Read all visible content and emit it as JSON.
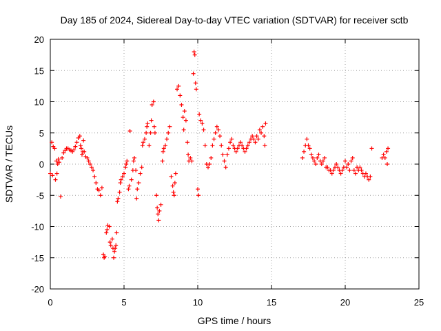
{
  "chart_data": {
    "type": "scatter",
    "title": "Day 185 of 2024, Sidereal Day-to-day VTEC variation (SDTVAR) for receiver sctb",
    "xlabel": "GPS time / hours",
    "ylabel": "SDTVAR / TECUs",
    "xlim": [
      0,
      25
    ],
    "ylim": [
      -20,
      20
    ],
    "x_ticks": [
      0,
      5,
      10,
      15,
      20,
      25
    ],
    "y_ticks": [
      -20,
      -15,
      -10,
      -5,
      0,
      5,
      10,
      15,
      20
    ],
    "grid": true,
    "marker": "+",
    "series": [
      {
        "name": "SDTVAR",
        "color": "#ff0000",
        "points": [
          [
            0.0,
            -1.5
          ],
          [
            0.1,
            3.5
          ],
          [
            0.15,
            -1.8
          ],
          [
            0.2,
            2.8
          ],
          [
            0.3,
            2.5
          ],
          [
            0.35,
            -2.5
          ],
          [
            0.4,
            0.5
          ],
          [
            0.45,
            -1.5
          ],
          [
            0.5,
            0.0
          ],
          [
            0.55,
            0.8
          ],
          [
            0.6,
            0.3
          ],
          [
            0.7,
            -5.2
          ],
          [
            0.8,
            1.0
          ],
          [
            0.9,
            1.8
          ],
          [
            1.0,
            2.2
          ],
          [
            1.1,
            2.5
          ],
          [
            1.2,
            2.5
          ],
          [
            1.3,
            2.3
          ],
          [
            1.4,
            2.2
          ],
          [
            1.5,
            2.0
          ],
          [
            1.6,
            2.3
          ],
          [
            1.7,
            2.8
          ],
          [
            1.8,
            3.5
          ],
          [
            1.9,
            4.2
          ],
          [
            2.0,
            4.5
          ],
          [
            2.05,
            3.0
          ],
          [
            2.1,
            2.5
          ],
          [
            2.15,
            1.5
          ],
          [
            2.2,
            2.0
          ],
          [
            2.25,
            3.8
          ],
          [
            2.3,
            2.0
          ],
          [
            2.4,
            1.2
          ],
          [
            2.5,
            1.0
          ],
          [
            2.6,
            0.5
          ],
          [
            2.7,
            0.0
          ],
          [
            2.8,
            -0.5
          ],
          [
            2.9,
            -1.0
          ],
          [
            3.0,
            -2.0
          ],
          [
            3.1,
            -3.0
          ],
          [
            3.2,
            -4.0
          ],
          [
            3.3,
            -4.2
          ],
          [
            3.4,
            -5.0
          ],
          [
            3.5,
            -3.8
          ],
          [
            3.6,
            -14.5
          ],
          [
            3.65,
            -15.0
          ],
          [
            3.7,
            -14.8
          ],
          [
            3.8,
            -11.0
          ],
          [
            3.85,
            -10.5
          ],
          [
            3.9,
            -9.8
          ],
          [
            4.0,
            -10.0
          ],
          [
            4.05,
            -12.5
          ],
          [
            4.1,
            -13.0
          ],
          [
            4.2,
            -12.0
          ],
          [
            4.25,
            -13.5
          ],
          [
            4.3,
            -15.0
          ],
          [
            4.35,
            -14.0
          ],
          [
            4.4,
            -13.5
          ],
          [
            4.45,
            -13.0
          ],
          [
            4.5,
            -11.0
          ],
          [
            4.55,
            -6.0
          ],
          [
            4.6,
            -5.5
          ],
          [
            4.7,
            -4.5
          ],
          [
            4.75,
            -3.0
          ],
          [
            4.8,
            -2.5
          ],
          [
            4.9,
            -2.0
          ],
          [
            5.0,
            -1.5
          ],
          [
            5.1,
            -0.5
          ],
          [
            5.15,
            0.0
          ],
          [
            5.2,
            0.5
          ],
          [
            5.3,
            -4.0
          ],
          [
            5.35,
            -3.5
          ],
          [
            5.4,
            5.3
          ],
          [
            5.5,
            -2.5
          ],
          [
            5.6,
            -1.0
          ],
          [
            5.65,
            0.5
          ],
          [
            5.7,
            1.0
          ],
          [
            5.8,
            -1.0
          ],
          [
            5.85,
            -5.5
          ],
          [
            5.9,
            -4.0
          ],
          [
            6.0,
            -3.0
          ],
          [
            6.1,
            -1.5
          ],
          [
            6.2,
            -0.5
          ],
          [
            6.25,
            3.0
          ],
          [
            6.3,
            3.5
          ],
          [
            6.4,
            4.0
          ],
          [
            6.5,
            5.0
          ],
          [
            6.55,
            6.0
          ],
          [
            6.6,
            6.5
          ],
          [
            6.7,
            3.0
          ],
          [
            6.8,
            5.0
          ],
          [
            6.85,
            7.0
          ],
          [
            6.9,
            9.5
          ],
          [
            7.0,
            10.0
          ],
          [
            7.05,
            6.0
          ],
          [
            7.1,
            5.0
          ],
          [
            7.2,
            -5.0
          ],
          [
            7.25,
            -7.0
          ],
          [
            7.3,
            -8.0
          ],
          [
            7.35,
            -9.0
          ],
          [
            7.4,
            -7.5
          ],
          [
            7.5,
            -6.5
          ],
          [
            7.6,
            0.5
          ],
          [
            7.65,
            2.0
          ],
          [
            7.7,
            2.5
          ],
          [
            7.8,
            3.0
          ],
          [
            7.9,
            4.0
          ],
          [
            8.0,
            5.0
          ],
          [
            8.1,
            6.0
          ],
          [
            8.2,
            -2.0
          ],
          [
            8.3,
            -3.5
          ],
          [
            8.35,
            -4.5
          ],
          [
            8.4,
            -5.0
          ],
          [
            8.45,
            -3.0
          ],
          [
            8.5,
            -1.5
          ],
          [
            8.6,
            12.0
          ],
          [
            8.7,
            12.5
          ],
          [
            8.8,
            11.0
          ],
          [
            8.9,
            9.5
          ],
          [
            9.0,
            7.5
          ],
          [
            9.05,
            5.5
          ],
          [
            9.1,
            8.5
          ],
          [
            9.2,
            7.0
          ],
          [
            9.3,
            3.5
          ],
          [
            9.35,
            1.5
          ],
          [
            9.4,
            0.5
          ],
          [
            9.5,
            1.0
          ],
          [
            9.6,
            0.5
          ],
          [
            9.7,
            14.5
          ],
          [
            9.75,
            18.0
          ],
          [
            9.8,
            17.5
          ],
          [
            9.85,
            13.0
          ],
          [
            9.9,
            12.0
          ],
          [
            10.0,
            -4.0
          ],
          [
            10.05,
            -5.0
          ],
          [
            10.1,
            8.0
          ],
          [
            10.2,
            7.0
          ],
          [
            10.3,
            6.5
          ],
          [
            10.4,
            5.5
          ],
          [
            10.5,
            3.0
          ],
          [
            10.6,
            0.0
          ],
          [
            10.7,
            -0.5
          ],
          [
            10.8,
            0.0
          ],
          [
            10.9,
            1.0
          ],
          [
            11.0,
            3.0
          ],
          [
            11.1,
            4.0
          ],
          [
            11.2,
            5.0
          ],
          [
            11.3,
            6.0
          ],
          [
            11.4,
            5.5
          ],
          [
            11.5,
            4.5
          ],
          [
            11.6,
            3.0
          ],
          [
            11.7,
            1.5
          ],
          [
            11.8,
            0.5
          ],
          [
            11.9,
            -0.5
          ],
          [
            12.0,
            1.5
          ],
          [
            12.1,
            2.5
          ],
          [
            12.2,
            3.5
          ],
          [
            12.3,
            4.0
          ],
          [
            12.4,
            3.0
          ],
          [
            12.5,
            2.5
          ],
          [
            12.6,
            2.0
          ],
          [
            12.7,
            2.5
          ],
          [
            12.8,
            3.0
          ],
          [
            12.9,
            3.5
          ],
          [
            13.0,
            3.0
          ],
          [
            13.1,
            2.5
          ],
          [
            13.2,
            2.0
          ],
          [
            13.3,
            2.5
          ],
          [
            13.4,
            3.0
          ],
          [
            13.5,
            3.5
          ],
          [
            13.6,
            4.0
          ],
          [
            13.7,
            4.5
          ],
          [
            13.8,
            4.0
          ],
          [
            13.9,
            3.5
          ],
          [
            14.0,
            4.5
          ],
          [
            14.1,
            4.0
          ],
          [
            14.2,
            5.5
          ],
          [
            14.3,
            5.0
          ],
          [
            14.4,
            6.0
          ],
          [
            14.5,
            4.5
          ],
          [
            14.55,
            3.0
          ],
          [
            14.6,
            6.5
          ],
          [
            17.1,
            1.0
          ],
          [
            17.2,
            2.0
          ],
          [
            17.3,
            3.0
          ],
          [
            17.4,
            4.0
          ],
          [
            17.5,
            3.0
          ],
          [
            17.6,
            2.5
          ],
          [
            17.7,
            1.5
          ],
          [
            17.8,
            1.0
          ],
          [
            17.9,
            0.5
          ],
          [
            18.0,
            0.0
          ],
          [
            18.1,
            1.0
          ],
          [
            18.2,
            1.5
          ],
          [
            18.3,
            0.5
          ],
          [
            18.4,
            0.0
          ],
          [
            18.5,
            0.5
          ],
          [
            18.6,
            1.0
          ],
          [
            18.7,
            -0.5
          ],
          [
            18.8,
            -0.5
          ],
          [
            18.9,
            -1.0
          ],
          [
            19.0,
            -1.0
          ],
          [
            19.1,
            -1.5
          ],
          [
            19.2,
            -1.0
          ],
          [
            19.3,
            -0.5
          ],
          [
            19.4,
            0.0
          ],
          [
            19.5,
            -0.5
          ],
          [
            19.6,
            -1.0
          ],
          [
            19.7,
            -1.5
          ],
          [
            19.8,
            -1.0
          ],
          [
            19.9,
            -0.5
          ],
          [
            20.0,
            0.5
          ],
          [
            20.1,
            -0.5
          ],
          [
            20.2,
            0.0
          ],
          [
            20.3,
            -1.0
          ],
          [
            20.4,
            0.5
          ],
          [
            20.5,
            1.0
          ],
          [
            20.6,
            -1.0
          ],
          [
            20.7,
            -1.5
          ],
          [
            20.8,
            -0.5
          ],
          [
            20.9,
            -1.0
          ],
          [
            21.0,
            -0.5
          ],
          [
            21.1,
            -1.0
          ],
          [
            21.2,
            -1.5
          ],
          [
            21.3,
            -2.0
          ],
          [
            21.4,
            -1.5
          ],
          [
            21.5,
            -2.0
          ],
          [
            21.6,
            -2.5
          ],
          [
            21.7,
            -2.0
          ],
          [
            21.8,
            2.5
          ],
          [
            22.5,
            1.0
          ],
          [
            22.6,
            1.5
          ],
          [
            22.7,
            1.0
          ],
          [
            22.8,
            2.0
          ],
          [
            22.85,
            0.0
          ],
          [
            22.9,
            2.5
          ]
        ]
      }
    ]
  }
}
